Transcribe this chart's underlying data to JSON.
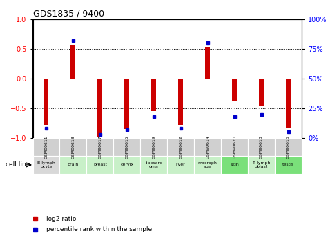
{
  "title": "GDS1835 / 9400",
  "samples": [
    "GSM90611",
    "GSM90618",
    "GSM90617",
    "GSM90615",
    "GSM90619",
    "GSM90612",
    "GSM90614",
    "GSM90620",
    "GSM90613",
    "GSM90616"
  ],
  "cell_lines": [
    "B lymph\nocyte",
    "brain",
    "breast",
    "cervix",
    "liposarc\noma",
    "liver",
    "macroph\nage",
    "skin",
    "T lymph\noblast",
    "testis"
  ],
  "cell_line_colors": [
    "#d8d8d8",
    "#c8f0c8",
    "#c8f0c8",
    "#c8f0c8",
    "#c8f0c8",
    "#c8f0c8",
    "#c8f0c8",
    "#7ae07a",
    "#c8f0c8",
    "#7ae07a"
  ],
  "log2_ratio": [
    -0.78,
    0.57,
    -0.97,
    -0.85,
    -0.55,
    -0.78,
    0.53,
    -0.38,
    -0.45,
    -0.82
  ],
  "percentile_rank": [
    8,
    82,
    3,
    7,
    18,
    8,
    80,
    18,
    20,
    5
  ],
  "ylim_left": [
    -1,
    1
  ],
  "ylim_right": [
    0,
    100
  ],
  "bar_color": "#cc0000",
  "dot_color": "#0000cc",
  "grid_yticks_left": [
    -1,
    -0.5,
    0,
    0.5,
    1
  ],
  "grid_yticks_right": [
    0,
    25,
    50,
    75,
    100
  ],
  "sample_box_color": "#d0d0d0",
  "legend_bar_label": "log2 ratio",
  "legend_dot_label": "percentile rank within the sample",
  "cell_line_label": "cell line"
}
